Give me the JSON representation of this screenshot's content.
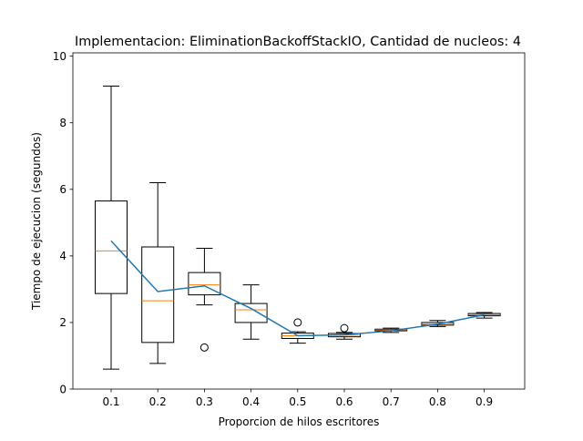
{
  "chart_data": {
    "type": "box",
    "title": "Implementacion: EliminationBackoffStackIO, Cantidad de nucleos: 4",
    "xlabel": "Proporcion de hilos escritores",
    "ylabel": "Tiempo de ejecucion (segundos)",
    "categories": [
      "0.1",
      "0.2",
      "0.3",
      "0.4",
      "0.5",
      "0.6",
      "0.7",
      "0.8",
      "0.9"
    ],
    "ylim": [
      0,
      10.1
    ],
    "yticks": [
      "0",
      "2",
      "4",
      "6",
      "8",
      "10"
    ],
    "grid": false,
    "boxes": [
      {
        "whisker_low": 0.6,
        "q1": 2.87,
        "median": 4.15,
        "q3": 5.65,
        "whisker_high": 9.1,
        "outliers": []
      },
      {
        "whisker_low": 0.77,
        "q1": 1.4,
        "median": 2.65,
        "q3": 4.27,
        "whisker_high": 6.2,
        "outliers": []
      },
      {
        "whisker_low": 2.53,
        "q1": 2.83,
        "median": 3.13,
        "q3": 3.5,
        "whisker_high": 4.23,
        "outliers": [
          1.25
        ]
      },
      {
        "whisker_low": 1.5,
        "q1": 2.0,
        "median": 2.38,
        "q3": 2.57,
        "whisker_high": 3.13,
        "outliers": []
      },
      {
        "whisker_low": 1.38,
        "q1": 1.52,
        "median": 1.6,
        "q3": 1.68,
        "whisker_high": 1.72,
        "outliers": [
          2.0
        ]
      },
      {
        "whisker_low": 1.5,
        "q1": 1.57,
        "median": 1.62,
        "q3": 1.67,
        "whisker_high": 1.7,
        "outliers": [
          1.83
        ]
      },
      {
        "whisker_low": 1.7,
        "q1": 1.75,
        "median": 1.78,
        "q3": 1.8,
        "whisker_high": 1.83,
        "outliers": []
      },
      {
        "whisker_low": 1.88,
        "q1": 1.92,
        "median": 1.95,
        "q3": 2.0,
        "whisker_high": 2.06,
        "outliers": []
      },
      {
        "whisker_low": 2.13,
        "q1": 2.2,
        "median": 2.23,
        "q3": 2.27,
        "whisker_high": 2.3,
        "outliers": []
      }
    ],
    "mean_line": [
      4.45,
      2.93,
      3.1,
      2.42,
      1.6,
      1.63,
      1.75,
      1.95,
      2.23
    ],
    "colors": {
      "box": "#000000",
      "median": "#ff7f0e",
      "mean_line": "#1f77b4"
    }
  }
}
